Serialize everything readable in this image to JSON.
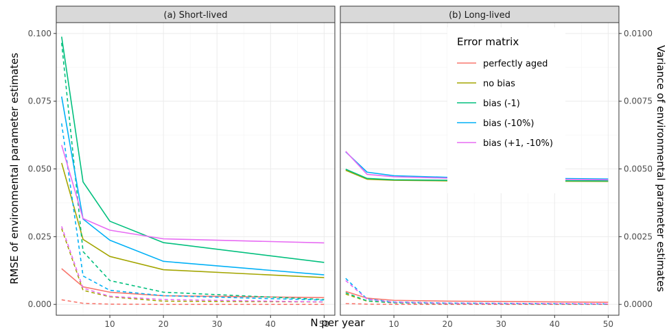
{
  "chart_data": {
    "type": "line",
    "xlabel": "N per year",
    "ylabel_left": "RMSE of environmental parameter estimates",
    "ylabel_right": "Variance of environmental parameter estimates",
    "x_ticks": [
      10,
      20,
      30,
      40,
      50
    ],
    "xlim": [
      0,
      52
    ],
    "left_ticks": [
      "0.000",
      "0.025",
      "0.050",
      "0.075",
      "0.100"
    ],
    "left_tick_values": [
      0,
      0.025,
      0.05,
      0.075,
      0.1
    ],
    "right_ticks": [
      "0.0000",
      "0.0025",
      "0.0050",
      "0.0075",
      "0.0100"
    ],
    "right_tick_values": [
      0,
      0.0025,
      0.005,
      0.0075,
      0.01
    ],
    "ylim": [
      -0.004,
      0.104
    ],
    "legend": {
      "title": "Error matrix",
      "placement": "top-right",
      "entries": [
        {
          "name": "perfectly aged",
          "color": "#F8766D"
        },
        {
          "name": "no bias",
          "color": "#A3A500"
        },
        {
          "name": "bias (-1)",
          "color": "#00BF7D"
        },
        {
          "name": "bias (-10%)",
          "color": "#00B0F6"
        },
        {
          "name": "bias (+1, -10%)",
          "color": "#E76BF3"
        }
      ]
    },
    "line_types": {
      "solid": "RMSE (left axis)",
      "dashed": "Variance (right axis)"
    },
    "x": [
      1,
      5,
      10,
      20,
      50
    ],
    "panels": [
      {
        "strip": "(a) Short-lived",
        "series": [
          {
            "name": "perfectly aged",
            "solid": [
              0.0132,
              0.0065,
              0.0045,
              0.0032,
              0.0025
            ],
            "dashed": [
              0.0017,
              0.0004,
              0.0001,
              0.0,
              0.0
            ]
          },
          {
            "name": "no bias",
            "solid": [
              0.0522,
              0.024,
              0.0177,
              0.0128,
              0.0099
            ],
            "dashed": [
              0.028,
              0.0052,
              0.0028,
              0.0012,
              0.0009
            ]
          },
          {
            "name": "bias (-1)",
            "solid": [
              0.0988,
              0.0452,
              0.0307,
              0.0228,
              0.0155
            ],
            "dashed": [
              0.0965,
              0.0195,
              0.0088,
              0.0045,
              0.0018
            ]
          },
          {
            "name": "bias (-10%)",
            "solid": [
              0.0767,
              0.0315,
              0.0237,
              0.0159,
              0.0109
            ],
            "dashed": [
              0.0668,
              0.0105,
              0.0052,
              0.0032,
              0.0016
            ]
          },
          {
            "name": "bias (+1, -10%)",
            "solid": [
              0.0588,
              0.0317,
              0.0274,
              0.0242,
              0.0227
            ],
            "dashed": [
              0.0288,
              0.006,
              0.003,
              0.0018,
              0.0009
            ]
          }
        ]
      },
      {
        "strip": "(b) Long-lived",
        "series": [
          {
            "name": "perfectly aged",
            "solid": [
              0.0048,
              0.0023,
              0.0015,
              0.0012,
              0.0008
            ],
            "dashed": [
              0.0003,
              0.0001,
              0.0,
              0.0,
              0.0
            ]
          },
          {
            "name": "no bias",
            "solid": [
              0.0495,
              0.0462,
              0.0458,
              0.0456,
              0.0454
            ],
            "dashed": [
              0.0038,
              0.0012,
              0.0006,
              0.0003,
              0.0001
            ]
          },
          {
            "name": "bias (-1)",
            "solid": [
              0.0499,
              0.0465,
              0.046,
              0.0458,
              0.0456
            ],
            "dashed": [
              0.0043,
              0.0013,
              0.0006,
              0.0003,
              0.0001
            ]
          },
          {
            "name": "bias (-10%)",
            "solid": [
              0.0563,
              0.0488,
              0.0475,
              0.0469,
              0.0463
            ],
            "dashed": [
              0.0096,
              0.002,
              0.0009,
              0.0005,
              0.0002
            ]
          },
          {
            "name": "bias (+1, -10%)",
            "solid": [
              0.0565,
              0.048,
              0.0471,
              0.0466,
              0.046
            ],
            "dashed": [
              0.0088,
              0.0019,
              0.0008,
              0.0004,
              0.0002
            ]
          }
        ]
      }
    ]
  }
}
